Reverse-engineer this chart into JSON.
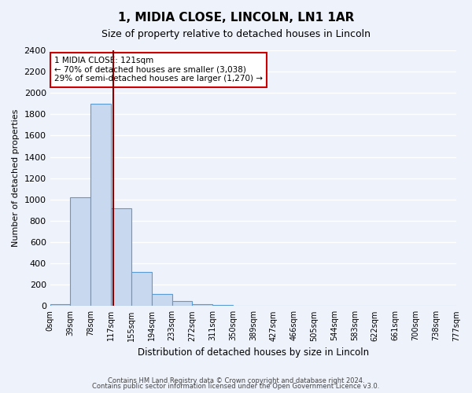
{
  "title": "1, MIDIA CLOSE, LINCOLN, LN1 1AR",
  "subtitle": "Size of property relative to detached houses in Lincoln",
  "xlabel": "Distribution of detached houses by size in Lincoln",
  "ylabel": "Number of detached properties",
  "bar_values": [
    20,
    1020,
    1900,
    920,
    320,
    110,
    50,
    20,
    10,
    0,
    0,
    0,
    0,
    0,
    0,
    0,
    0,
    0,
    0,
    0
  ],
  "bin_labels": [
    "0sqm",
    "39sqm",
    "78sqm",
    "117sqm",
    "155sqm",
    "194sqm",
    "233sqm",
    "272sqm",
    "311sqm",
    "350sqm",
    "389sqm",
    "427sqm",
    "466sqm",
    "505sqm",
    "544sqm",
    "583sqm",
    "622sqm",
    "661sqm",
    "700sqm",
    "738sqm",
    "777sqm"
  ],
  "bar_color": "#c8d8ee",
  "bar_edge_color": "#5b9bd5",
  "property_line_color": "#8b0000",
  "annotation_title": "1 MIDIA CLOSE: 121sqm",
  "annotation_line1": "← 70% of detached houses are smaller (3,038)",
  "annotation_line2": "29% of semi-detached houses are larger (1,270) →",
  "annotation_box_color": "#ffffff",
  "annotation_box_edge_color": "#cc0000",
  "ylim": [
    0,
    2400
  ],
  "yticks": [
    0,
    200,
    400,
    600,
    800,
    1000,
    1200,
    1400,
    1600,
    1800,
    2000,
    2200,
    2400
  ],
  "footer1": "Contains HM Land Registry data © Crown copyright and database right 2024.",
  "footer2": "Contains public sector information licensed under the Open Government Licence v3.0.",
  "background_color": "#eef2fb",
  "grid_color": "#ffffff",
  "bin_width": 39,
  "num_bins": 20,
  "property_size": 121
}
